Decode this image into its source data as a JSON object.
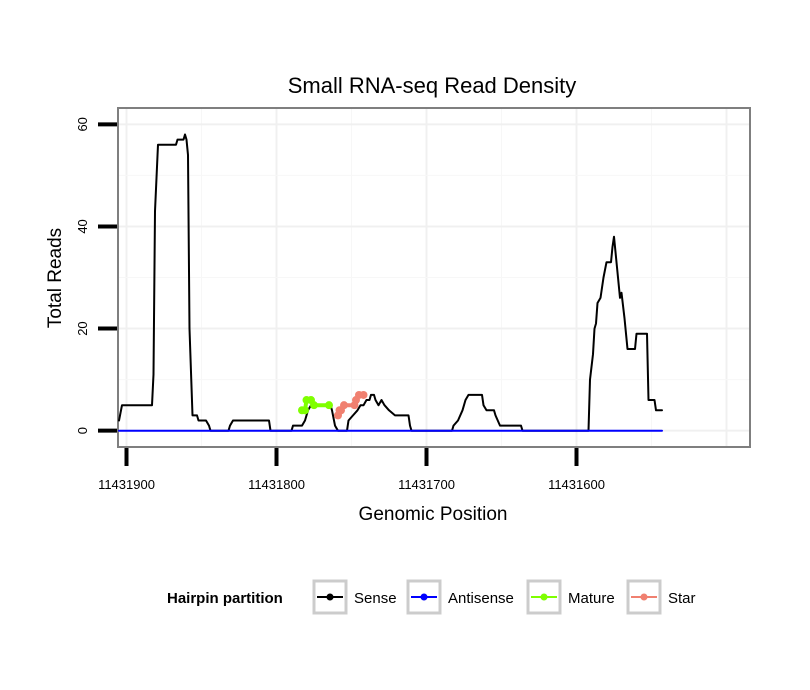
{
  "chart_data": {
    "type": "line",
    "title": "Small RNA-seq Read Density",
    "xlabel": "Genomic Position",
    "ylabel": "Total Reads",
    "x_reversed": true,
    "xlim": [
      11431905,
      11431485
    ],
    "ylim": [
      -3,
      63
    ],
    "x_ticks": [
      11431900,
      11431800,
      11431700,
      11431600
    ],
    "x_tick_labels": [
      "11431900",
      "11431800",
      "11431700",
      "11431600"
    ],
    "y_ticks": [
      0,
      20,
      40,
      60
    ],
    "y_tick_labels": [
      "0",
      "20",
      "40",
      "60"
    ],
    "grid": true,
    "legend": {
      "title": "Hairpin partition",
      "position": "bottom",
      "entries": [
        "Sense",
        "Antisense",
        "Mature",
        "Star"
      ]
    },
    "colors": {
      "Sense": "#000000",
      "Antisense": "#0000ff",
      "Mature": "#7fff00",
      "Star": "#f08070"
    },
    "series": [
      {
        "name": "Sense",
        "points": [
          [
            11431905,
            2
          ],
          [
            11431903,
            5
          ],
          [
            11431883,
            5
          ],
          [
            11431882,
            11
          ],
          [
            11431881,
            43
          ],
          [
            11431879,
            56
          ],
          [
            11431867,
            56
          ],
          [
            11431866,
            57
          ],
          [
            11431862,
            57
          ],
          [
            11431861,
            58
          ],
          [
            11431860,
            57
          ],
          [
            11431859,
            54
          ],
          [
            11431858,
            20
          ],
          [
            11431856,
            3
          ],
          [
            11431853,
            3
          ],
          [
            11431852,
            2
          ],
          [
            11431847,
            2
          ],
          [
            11431845,
            1
          ],
          [
            11431844,
            0
          ],
          [
            11431832,
            0
          ],
          [
            11431831,
            1
          ],
          [
            11431829,
            2
          ],
          [
            11431805,
            2
          ],
          [
            11431804,
            0
          ],
          [
            11431790,
            0
          ],
          [
            11431789,
            1
          ],
          [
            11431783,
            1
          ],
          [
            11431781,
            2
          ],
          [
            11431779,
            4
          ],
          [
            11431777,
            5
          ],
          [
            11431764,
            5
          ],
          [
            11431763,
            4
          ],
          [
            11431761,
            1
          ],
          [
            11431759,
            0
          ],
          [
            11431753,
            0
          ],
          [
            11431752,
            2
          ],
          [
            11431749,
            3
          ],
          [
            11431746,
            4
          ],
          [
            11431744,
            5
          ],
          [
            11431742,
            5
          ],
          [
            11431740,
            6
          ],
          [
            11431738,
            6
          ],
          [
            11431737,
            7
          ],
          [
            11431735,
            7
          ],
          [
            11431734,
            6
          ],
          [
            11431732,
            5
          ],
          [
            11431730,
            6
          ],
          [
            11431728,
            5
          ],
          [
            11431725,
            4
          ],
          [
            11431721,
            3
          ],
          [
            11431712,
            3
          ],
          [
            11431711,
            1
          ],
          [
            11431710,
            0
          ],
          [
            11431683,
            0
          ],
          [
            11431682,
            1
          ],
          [
            11431679,
            2
          ],
          [
            11431676,
            4
          ],
          [
            11431674,
            6
          ],
          [
            11431672,
            7
          ],
          [
            11431663,
            7
          ],
          [
            11431662,
            5
          ],
          [
            11431660,
            4
          ],
          [
            11431655,
            4
          ],
          [
            11431654,
            3
          ],
          [
            11431651,
            1
          ],
          [
            11431637,
            1
          ],
          [
            11431636,
            0
          ],
          [
            11431592,
            0
          ],
          [
            11431591,
            10
          ],
          [
            11431589,
            15
          ],
          [
            11431588,
            20
          ],
          [
            11431587,
            21
          ],
          [
            11431586,
            25
          ],
          [
            11431584,
            26
          ],
          [
            11431582,
            30
          ],
          [
            11431580,
            33
          ],
          [
            11431577,
            33
          ],
          [
            11431576,
            36
          ],
          [
            11431575,
            38
          ],
          [
            11431573,
            32
          ],
          [
            11431572,
            29
          ],
          [
            11431571,
            26
          ],
          [
            11431570,
            27
          ],
          [
            11431568,
            22
          ],
          [
            11431566,
            16
          ],
          [
            11431561,
            16
          ],
          [
            11431560,
            19
          ],
          [
            11431553,
            19
          ],
          [
            11431552,
            6
          ],
          [
            11431548,
            6
          ],
          [
            11431547,
            4
          ],
          [
            11431543,
            4
          ]
        ]
      },
      {
        "name": "Antisense",
        "points": [
          [
            11431905,
            0
          ],
          [
            11431543,
            0
          ]
        ]
      },
      {
        "name": "Mature",
        "points": [
          [
            11431783,
            4
          ],
          [
            11431781,
            4
          ],
          [
            11431780,
            6
          ],
          [
            11431777,
            6
          ],
          [
            11431775,
            5
          ],
          [
            11431765,
            5
          ]
        ]
      },
      {
        "name": "Star",
        "points": [
          [
            11431759,
            3
          ],
          [
            11431758,
            4
          ],
          [
            11431757,
            4
          ],
          [
            11431755,
            5
          ],
          [
            11431748,
            5
          ],
          [
            11431747,
            6
          ],
          [
            11431745,
            7
          ],
          [
            11431742,
            7
          ]
        ]
      }
    ]
  }
}
